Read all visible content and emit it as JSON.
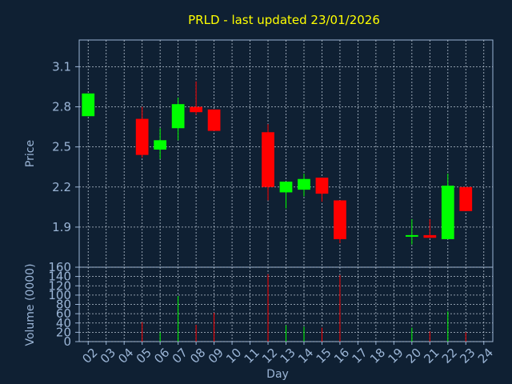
{
  "chart_data": {
    "type": "candlestick",
    "title": "PRLD - last updated 23/01/2026",
    "price_panel": {
      "ylabel": "Price",
      "ylim": [
        1.6,
        3.3
      ],
      "yticks": [
        "1.9",
        "2.2",
        "2.5",
        "2.8",
        "3.1"
      ],
      "candles": [
        {
          "x": "02",
          "open": 2.73,
          "high": 2.9,
          "low": 2.73,
          "close": 2.9
        },
        {
          "x": "05",
          "open": 2.71,
          "high": 2.8,
          "low": 2.42,
          "close": 2.44
        },
        {
          "x": "06",
          "open": 2.48,
          "high": 2.64,
          "low": 2.41,
          "close": 2.55
        },
        {
          "x": "07",
          "open": 2.64,
          "high": 2.87,
          "low": 2.55,
          "close": 2.82
        },
        {
          "x": "08",
          "open": 2.8,
          "high": 2.99,
          "low": 2.74,
          "close": 2.76
        },
        {
          "x": "09",
          "open": 2.78,
          "high": 2.78,
          "low": 2.62,
          "close": 2.62
        },
        {
          "x": "12",
          "open": 2.61,
          "high": 2.67,
          "low": 2.1,
          "close": 2.2
        },
        {
          "x": "13",
          "open": 2.16,
          "high": 2.24,
          "low": 2.04,
          "close": 2.24
        },
        {
          "x": "14",
          "open": 2.18,
          "high": 2.3,
          "low": 2.13,
          "close": 2.26
        },
        {
          "x": "15",
          "open": 2.27,
          "high": 2.27,
          "low": 2.09,
          "close": 2.15
        },
        {
          "x": "16",
          "open": 2.1,
          "high": 2.1,
          "low": 1.78,
          "close": 1.81
        },
        {
          "x": "20",
          "open": 1.83,
          "high": 1.96,
          "low": 1.77,
          "close": 1.84
        },
        {
          "x": "21",
          "open": 1.84,
          "high": 1.96,
          "low": 1.82,
          "close": 1.82
        },
        {
          "x": "22",
          "open": 1.81,
          "high": 2.3,
          "low": 1.81,
          "close": 2.21
        },
        {
          "x": "23",
          "open": 2.2,
          "high": 2.2,
          "low": 2.02,
          "close": 2.02
        }
      ]
    },
    "volume_panel": {
      "ylabel": "Volume (0000)",
      "ylim": [
        0,
        160
      ],
      "yticks": [
        "0",
        "20",
        "40",
        "60",
        "80",
        "100",
        "120",
        "140",
        "160"
      ],
      "bars": [
        {
          "x": "05",
          "value": 42,
          "color": "#ff0000"
        },
        {
          "x": "06",
          "value": 20,
          "color": "#00ff00"
        },
        {
          "x": "07",
          "value": 98,
          "color": "#00ff00"
        },
        {
          "x": "08",
          "value": 36,
          "color": "#ff0000"
        },
        {
          "x": "09",
          "value": 62,
          "color": "#ff0000"
        },
        {
          "x": "12",
          "value": 145,
          "color": "#ff0000"
        },
        {
          "x": "13",
          "value": 35,
          "color": "#00ff00"
        },
        {
          "x": "14",
          "value": 32,
          "color": "#00ff00"
        },
        {
          "x": "15",
          "value": 30,
          "color": "#ff0000"
        },
        {
          "x": "16",
          "value": 143,
          "color": "#ff0000"
        },
        {
          "x": "20",
          "value": 30,
          "color": "#00ff00"
        },
        {
          "x": "21",
          "value": 22,
          "color": "#ff0000"
        },
        {
          "x": "22",
          "value": 65,
          "color": "#00ff00"
        },
        {
          "x": "23",
          "value": 20,
          "color": "#ff0000"
        }
      ]
    },
    "xlabel": "Day",
    "x_categories": [
      "02",
      "03",
      "04",
      "05",
      "06",
      "07",
      "08",
      "09",
      "10",
      "11",
      "12",
      "13",
      "14",
      "15",
      "16",
      "17",
      "18",
      "19",
      "20",
      "21",
      "22",
      "23",
      "24"
    ],
    "colors": {
      "background": "#0f2033",
      "up": "#00ff00",
      "down": "#ff0000",
      "title": "#ffff00",
      "axis_text": "#9bb5d6",
      "grid": "#b8c4d2"
    },
    "grid": true
  }
}
